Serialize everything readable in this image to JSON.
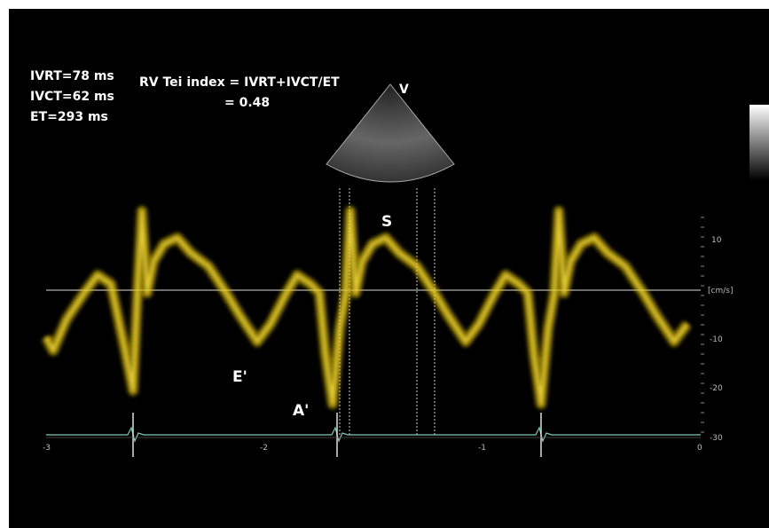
{
  "measurements": [
    "IVRT=78 ms",
    "IVCT=62 ms",
    "ET=293 ms"
  ],
  "formula": {
    "line1": "RV Tei index = IVRT+IVCT/ET",
    "line2": "= 0.48"
  },
  "waves": {
    "s": "S",
    "e": "E'",
    "a": "A'"
  },
  "probe_label": "V",
  "velocity_axis": {
    "labels": [
      "10",
      "[cm/s]",
      "-10",
      "-20",
      "-30"
    ]
  },
  "time_axis": {
    "labels": [
      "-3",
      "-2",
      "-1",
      "0"
    ]
  }
}
